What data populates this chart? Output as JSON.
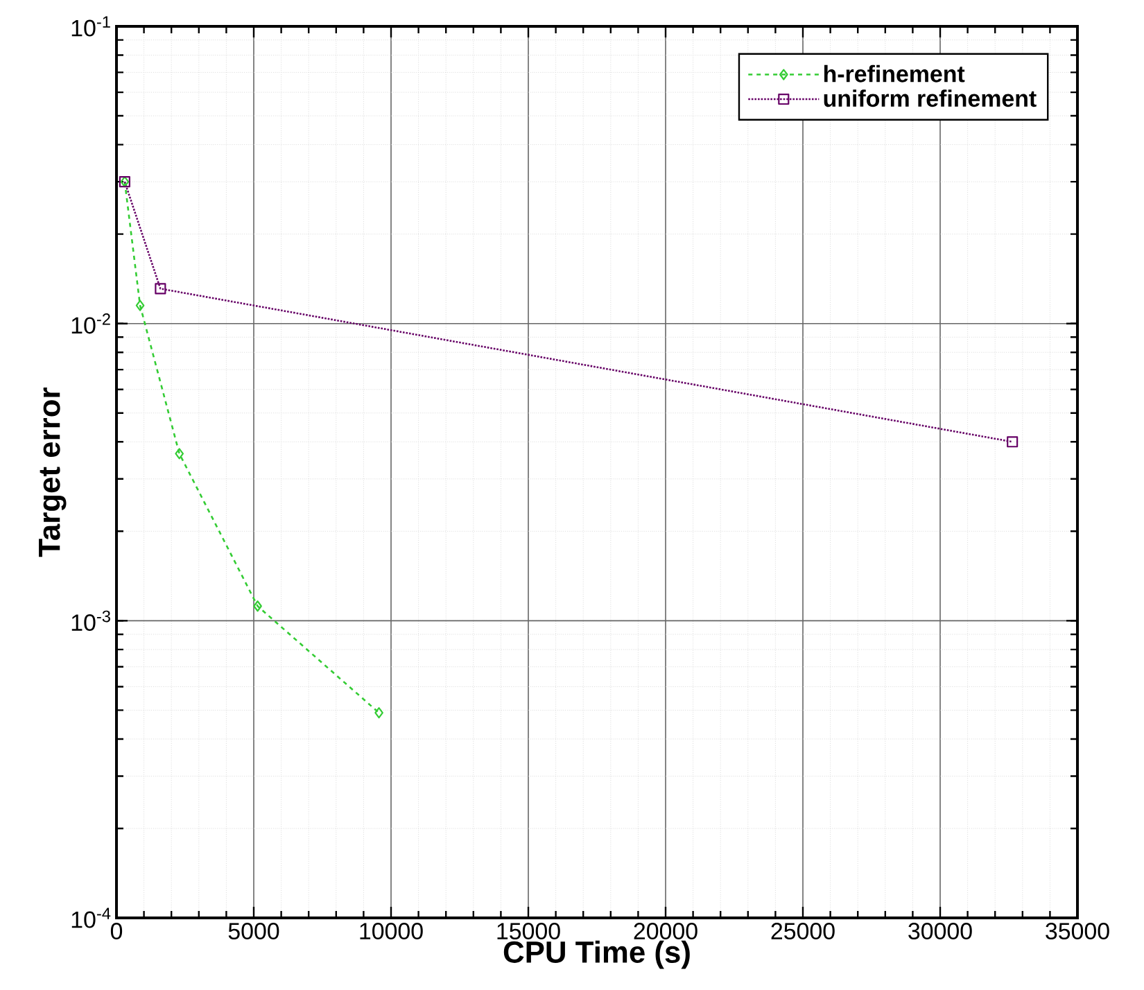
{
  "chart_data": {
    "type": "line",
    "xlabel": "CPU Time (s)",
    "ylabel": "Target error",
    "log": "y",
    "grid": true,
    "legend": "top right",
    "xlim": [
      0,
      35000
    ],
    "xticks": [
      0,
      5000,
      10000,
      15000,
      20000,
      25000,
      30000,
      35000
    ],
    "ylim": [
      0.0001,
      0.1
    ],
    "yticks": [
      {
        "value": 0.0001,
        "label": "10$^{-4}$"
      },
      {
        "value": 0.001,
        "label": "10$^{-3}$"
      },
      {
        "value": 0.01,
        "label": "10$^{-2}$"
      },
      {
        "value": 0.1,
        "label": "10$^{-1}$"
      }
    ],
    "series": [
      {
        "name": "h-refinement",
        "color": "#33cc33",
        "marker": "diamond",
        "line_style": "dashed",
        "x": [
          300,
          860,
          2290,
          5140,
          9560
        ],
        "values": [
          0.03,
          0.0115,
          0.00365,
          0.00112,
          0.00049
        ]
      },
      {
        "name": "uniform refinement",
        "color": "#660066",
        "marker": "square",
        "line_style": "dotted",
        "x": [
          300,
          1600,
          32630
        ],
        "values": [
          0.03,
          0.0131,
          0.004
        ]
      }
    ]
  }
}
